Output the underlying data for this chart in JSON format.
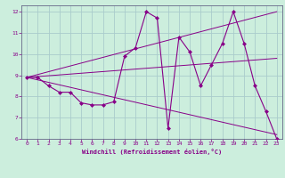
{
  "xlabel": "Windchill (Refroidissement éolien,°C)",
  "bg_color": "#cceedd",
  "line_color": "#880088",
  "grid_color": "#aacccc",
  "axis_color": "#666688",
  "xlim": [
    -0.5,
    23.5
  ],
  "ylim": [
    6,
    12.3
  ],
  "xticks": [
    0,
    1,
    2,
    3,
    4,
    5,
    6,
    7,
    8,
    9,
    10,
    11,
    12,
    13,
    14,
    15,
    16,
    17,
    18,
    19,
    20,
    21,
    22,
    23
  ],
  "yticks": [
    6,
    7,
    8,
    9,
    10,
    11,
    12
  ],
  "series1_x": [
    0,
    1,
    2,
    3,
    4,
    5,
    6,
    7,
    8,
    9,
    10,
    11,
    12,
    13,
    14,
    15,
    16,
    17,
    18,
    19,
    20,
    21,
    22,
    23
  ],
  "series1_y": [
    8.9,
    8.9,
    8.5,
    8.2,
    8.2,
    7.7,
    7.6,
    7.6,
    7.75,
    9.9,
    10.3,
    12.0,
    11.7,
    6.5,
    10.8,
    10.1,
    8.5,
    9.5,
    10.5,
    12.0,
    10.5,
    8.5,
    7.3,
    6.0
  ],
  "trend1_x": [
    0,
    23
  ],
  "trend1_y": [
    8.9,
    9.8
  ],
  "trend2_x": [
    0,
    23
  ],
  "trend2_y": [
    8.9,
    12.0
  ],
  "trend3_x": [
    0,
    23
  ],
  "trend3_y": [
    8.9,
    6.2
  ]
}
